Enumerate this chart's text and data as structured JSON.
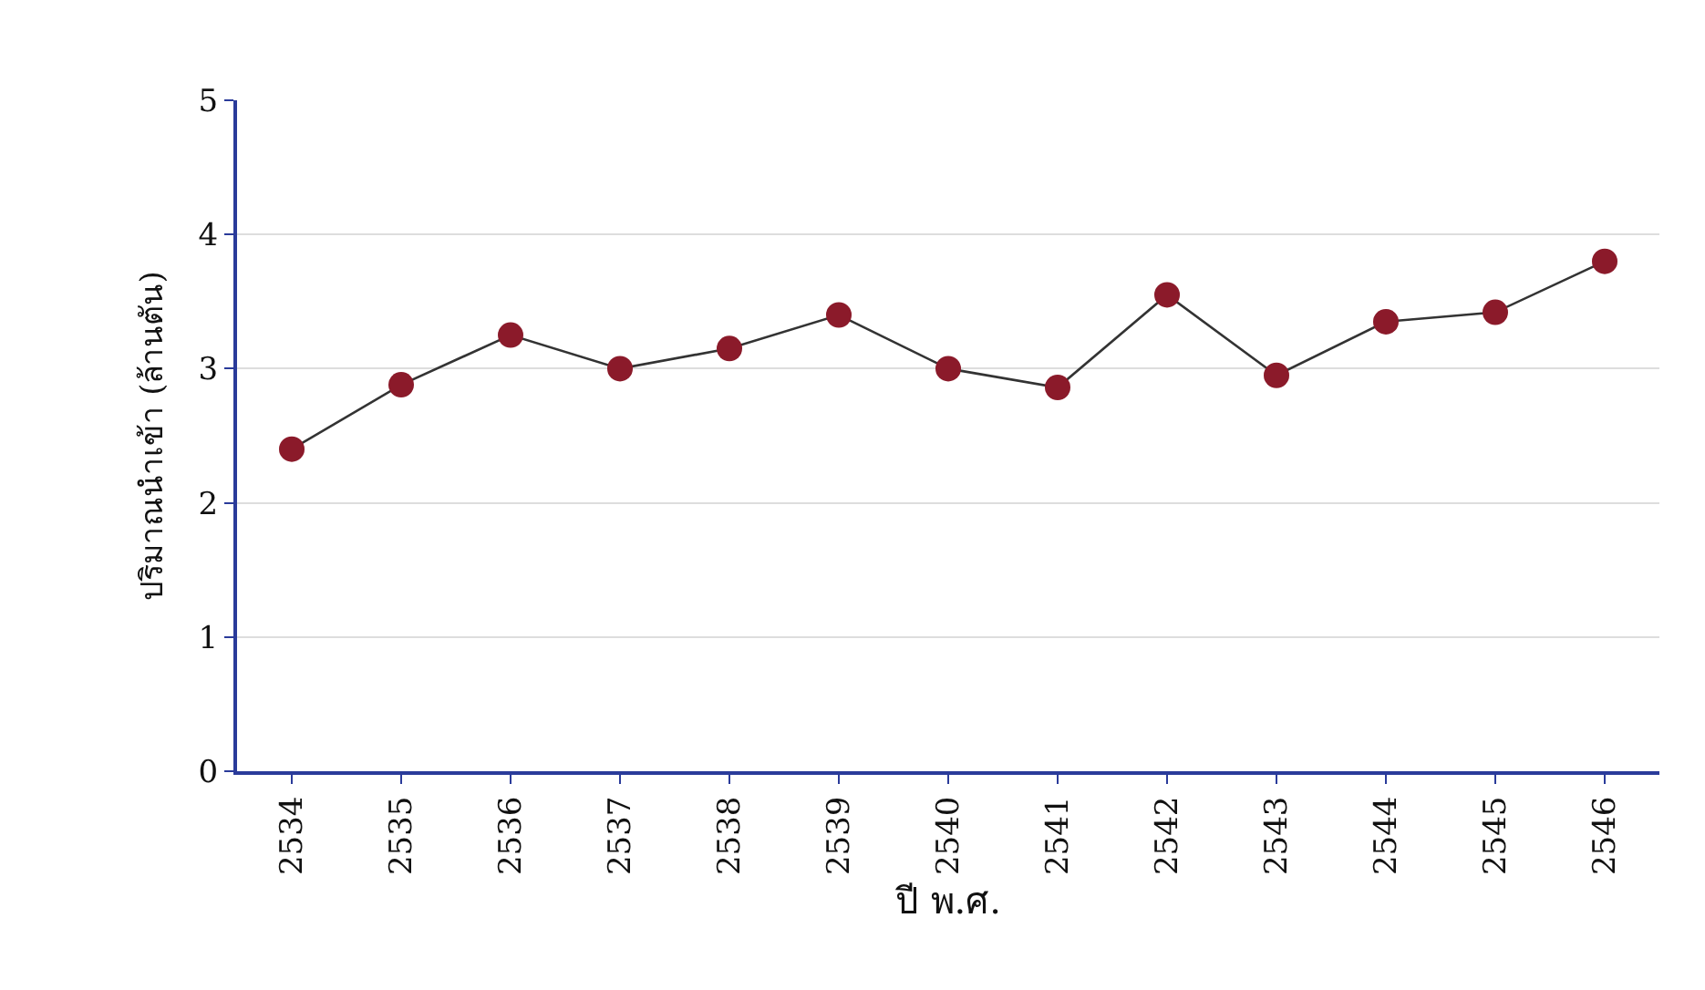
{
  "chart_data": {
    "type": "line",
    "xlabel": "ปี พ.ศ.",
    "ylabel": "ปริมาณนำเข้า (ล้านตัน)",
    "categories": [
      "2534",
      "2535",
      "2536",
      "2537",
      "2538",
      "2539",
      "2540",
      "2541",
      "2542",
      "2543",
      "2544",
      "2545",
      "2546"
    ],
    "series": [
      {
        "color": "#8b1a2a",
        "values": [
          2.4,
          2.88,
          3.25,
          3.0,
          3.15,
          3.4,
          3.0,
          2.86,
          3.55,
          2.95,
          3.35,
          3.42,
          3.8
        ]
      }
    ],
    "ylim": [
      0,
      5
    ],
    "yticks": [
      0,
      1,
      2,
      3,
      4,
      5
    ],
    "grid": "y",
    "marker": "circle",
    "line_style": "solid",
    "legend": false
  }
}
